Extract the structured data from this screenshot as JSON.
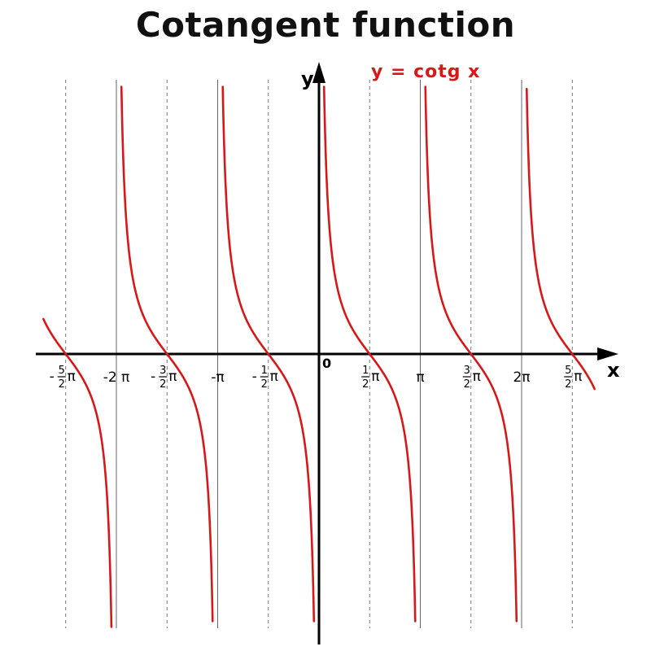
{
  "title": "Cotangent function",
  "chart_data": {
    "type": "line",
    "title": "Cotangent function",
    "function_label": "y = cotg x",
    "xlabel": "x",
    "ylabel": "y",
    "origin_label": "0",
    "xlim": [
      -2.75,
      2.75
    ],
    "xlim_unit": "π",
    "ylim": [
      -6.5,
      6.5
    ],
    "grid": "vertical lines at multiples of π/2 (solid at multiples of π)",
    "asymptotes": [
      "-2π",
      "-π",
      "0",
      "π",
      "2π"
    ],
    "zeros": [
      "-5/2π",
      "-3/2π",
      "-1/2π",
      "1/2π",
      "3/2π",
      "5/2π"
    ],
    "x_ticks": [
      {
        "value": -2.5,
        "sign": "-",
        "num": "5",
        "den": "2",
        "sym": "π"
      },
      {
        "value": -2.0,
        "label": "-2 π"
      },
      {
        "value": -1.5,
        "sign": "-",
        "num": "3",
        "den": "2",
        "sym": "π"
      },
      {
        "value": -1.0,
        "label": "-π"
      },
      {
        "value": -0.5,
        "sign": "-",
        "num": "1",
        "den": "2",
        "sym": "π"
      },
      {
        "value": 0.5,
        "sign": "",
        "num": "1",
        "den": "2",
        "sym": "π"
      },
      {
        "value": 1.0,
        "label": "π"
      },
      {
        "value": 1.5,
        "sign": "",
        "num": "3",
        "den": "2",
        "sym": "π"
      },
      {
        "value": 2.0,
        "label": "2π"
      },
      {
        "value": 2.5,
        "sign": "",
        "num": "5",
        "den": "2",
        "sym": "π"
      }
    ],
    "series": [
      {
        "name": "y = cotg x",
        "color": "#d81818",
        "formula": "cot(x)"
      }
    ]
  }
}
